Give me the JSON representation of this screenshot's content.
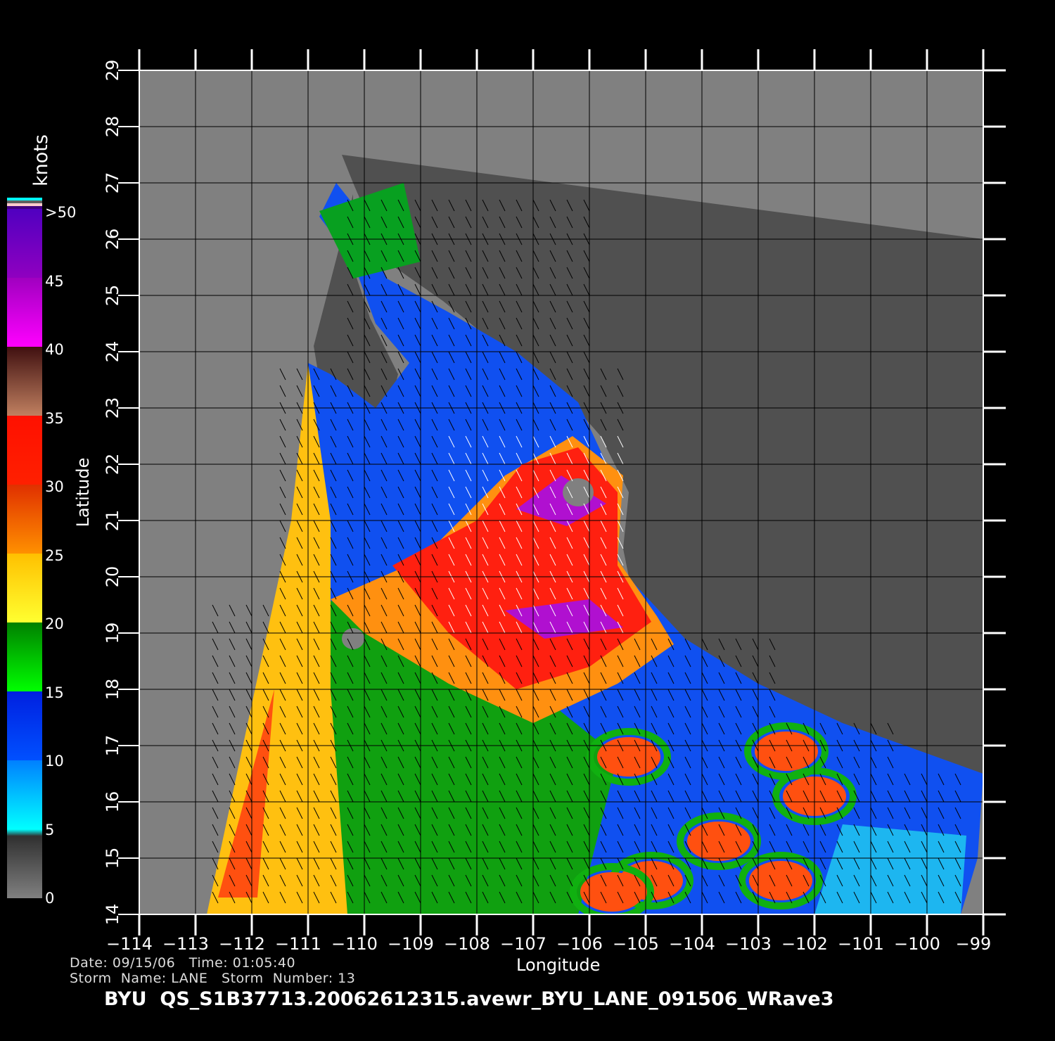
{
  "chart_data": {
    "type": "heatmap",
    "xlabel": "Longitude",
    "ylabel": "Latitude",
    "xlim": [
      -114,
      -99
    ],
    "ylim": [
      14,
      29
    ],
    "x_ticks": [
      "-114",
      "-113",
      "-112",
      "-111",
      "-110",
      "-109",
      "-108",
      "-107",
      "-106",
      "-105",
      "-104",
      "-103",
      "-102",
      "-101",
      "-100",
      "-99"
    ],
    "y_ticks": [
      "14",
      "15",
      "16",
      "17",
      "18",
      "19",
      "20",
      "21",
      "22",
      "23",
      "24",
      "25",
      "26",
      "27",
      "28",
      "29"
    ],
    "grid": true,
    "colorbar": {
      "unit": "knots",
      "labels": [
        "0",
        "5",
        "10",
        "15",
        "20",
        "25",
        "30",
        "35",
        "40",
        "45",
        ">50"
      ],
      "colors": [
        "#808080",
        "#00ffff",
        "#0050ff",
        "#00c000",
        "#ffff20",
        "#ff9000",
        "#ff2000",
        "#c08060",
        "#ff00ff",
        "#8000c0"
      ],
      "placement": "left"
    }
  },
  "info": {
    "line1": "Date: 09/15/06   Time: 01:05:40",
    "line2": "Storm  Name: LANE   Storm  Number: 13"
  },
  "title": "BYU  QS_S1B37713.20062612315.avewr_BYU_LANE_091506_WRave3"
}
